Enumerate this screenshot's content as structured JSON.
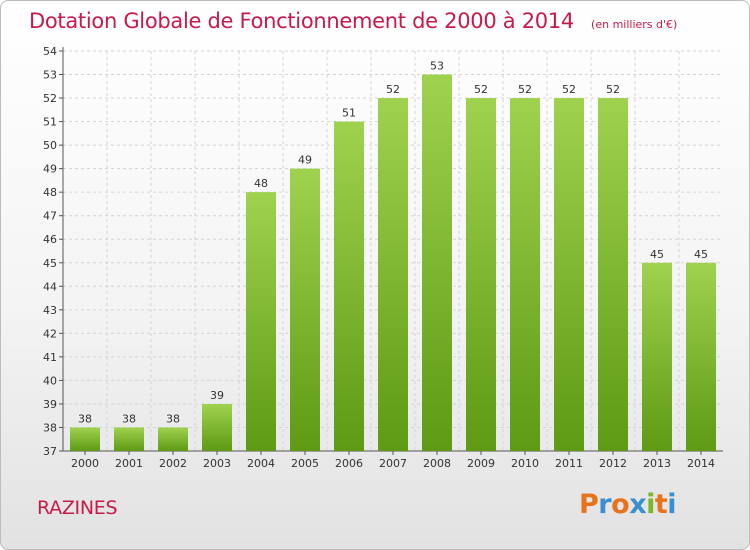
{
  "chart_data": {
    "type": "bar",
    "title": "Dotation Globale de Fonctionnement de 2000 à 2014",
    "subtitle": "(en milliers d'€)",
    "categories": [
      "2000",
      "2001",
      "2002",
      "2003",
      "2004",
      "2005",
      "2006",
      "2007",
      "2008",
      "2009",
      "2010",
      "2011",
      "2012",
      "2013",
      "2014"
    ],
    "values": [
      38,
      38,
      38,
      39,
      48,
      49,
      51,
      52,
      53,
      52,
      52,
      52,
      52,
      45,
      45
    ],
    "ylim": [
      37,
      54
    ],
    "yticks": [
      37,
      38,
      39,
      40,
      41,
      42,
      43,
      44,
      45,
      46,
      47,
      48,
      49,
      50,
      51,
      52,
      53,
      54
    ],
    "grid": true,
    "bar_color_top": "#9fd24f",
    "bar_color_bottom": "#5e9a14"
  },
  "commune": "RAZINES",
  "logo": {
    "text": "Proxiti",
    "letters": [
      "P",
      "r",
      "o",
      "x",
      "i",
      "t",
      "i"
    ],
    "colors": [
      "#e8731a",
      "#3a8fd0",
      "#e8731a",
      "#3a8fd0",
      "#7ab929",
      "#e8731a",
      "#3a8fd0"
    ]
  }
}
